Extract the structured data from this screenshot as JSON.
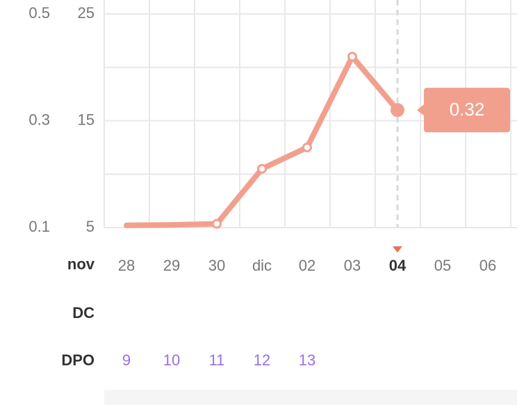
{
  "chart_data": {
    "type": "line",
    "month_label": "nov",
    "categories": [
      "28",
      "29",
      "30",
      "dic",
      "02",
      "03",
      "04",
      "05",
      "06"
    ],
    "highlight_index": 6,
    "series": [
      {
        "color": "#f2a08e",
        "values": [
          0.104,
          0.105,
          0.107,
          0.21,
          0.25,
          0.42,
          0.32,
          null,
          null
        ]
      }
    ],
    "ylim": [
      0.1,
      0.5
    ],
    "yticks": [
      0.1,
      0.3,
      0.5
    ],
    "y2lim": [
      5,
      25
    ],
    "y2ticks": [
      5,
      15,
      25
    ],
    "grid": true,
    "minor_grid": true,
    "rows": [
      {
        "label": "DC",
        "color": "#9b6ee8",
        "values": [
          null,
          null,
          null,
          null,
          null,
          null,
          null,
          null,
          null
        ]
      },
      {
        "label": "DPO",
        "color": "#9b6ee8",
        "values": [
          9,
          10,
          11,
          12,
          13,
          null,
          null,
          null,
          null
        ]
      }
    ]
  }
}
